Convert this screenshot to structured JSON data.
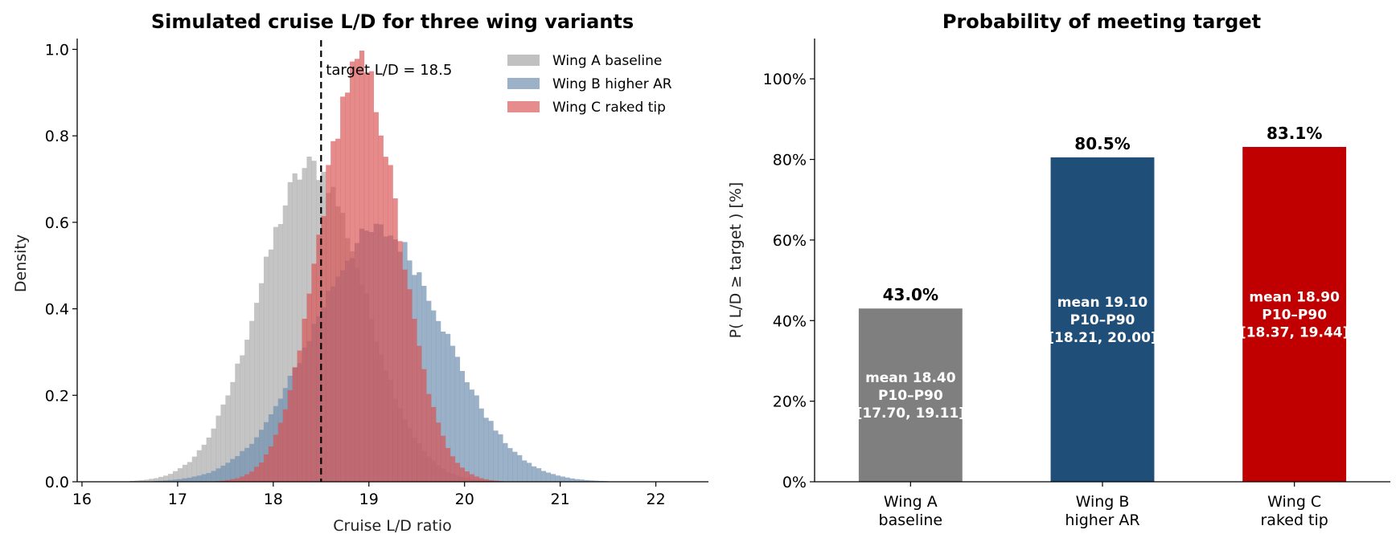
{
  "colors": {
    "wing_a": "#a0a0a0",
    "wing_b": "#7090b0",
    "wing_c": "#d94f4f",
    "bar_a": "#7f7f7f",
    "bar_b": "#1f4e79",
    "bar_c": "#c00000"
  },
  "chart_data": [
    {
      "type": "histogram",
      "title": "Simulated cruise L/D for three wing variants",
      "xlabel": "Cruise L/D ratio",
      "ylabel": "Density",
      "xlim": [
        15.95,
        22.55
      ],
      "ylim": [
        0,
        1.025
      ],
      "xticks": [
        "16",
        "17",
        "18",
        "19",
        "20",
        "21",
        "22"
      ],
      "yticks": [
        "0.0",
        "0.2",
        "0.4",
        "0.6",
        "0.8",
        "1.0"
      ],
      "bin_width": 0.05,
      "legend_position": "top-right",
      "series": [
        {
          "name": "Wing A baseline",
          "mean": 18.4,
          "sd": 0.545,
          "peak_density": 0.73
        },
        {
          "name": "Wing B higher AR",
          "mean": 19.1,
          "sd": 0.69,
          "peak_density": 0.58
        },
        {
          "name": "Wing C raked tip",
          "mean": 18.9,
          "sd": 0.415,
          "peak_density": 0.96
        }
      ],
      "reference_line": {
        "x": 18.5,
        "label": "target L/D = 18.5"
      }
    },
    {
      "type": "bar",
      "title": "Probability of meeting target",
      "ylabel": "P( L/D ≥ target )  [%]",
      "ylim": [
        0,
        110
      ],
      "yticks": [
        "0%",
        "20%",
        "40%",
        "60%",
        "80%",
        "100%"
      ],
      "categories": [
        {
          "line1": "Wing A",
          "line2": "baseline"
        },
        {
          "line1": "Wing B",
          "line2": "higher AR"
        },
        {
          "line1": "Wing C",
          "line2": "raked tip"
        }
      ],
      "values": [
        43.0,
        80.5,
        83.1
      ],
      "value_labels": [
        "43.0%",
        "80.5%",
        "83.1%"
      ],
      "inner_labels": [
        {
          "mean": "mean 18.40",
          "range_label": "P10–P90",
          "range": "[17.70, 19.11]"
        },
        {
          "mean": "mean 19.10",
          "range_label": "P10–P90",
          "range": "[18.21, 20.00]"
        },
        {
          "mean": "mean 18.90",
          "range_label": "P10–P90",
          "range": "[18.37, 19.44]"
        }
      ]
    }
  ]
}
